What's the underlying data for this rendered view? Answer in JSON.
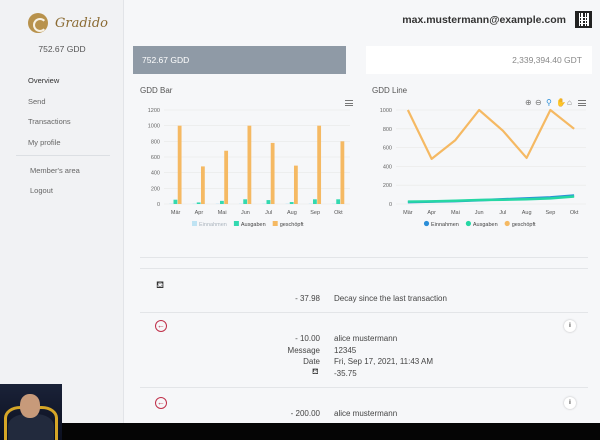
{
  "sidebar": {
    "brand": "Gradido",
    "balance": "752.67 GDD",
    "nav": [
      {
        "label": "Overview"
      },
      {
        "label": "Send"
      },
      {
        "label": "Transactions"
      },
      {
        "label": "My profile"
      }
    ],
    "nav2": [
      {
        "label": "Member's area"
      },
      {
        "label": "Logout"
      }
    ]
  },
  "header": {
    "email": "max.mustermann@example.com",
    "qr_icon": "qr-code-icon"
  },
  "balances": {
    "gdd": "752.67 GDD",
    "gdt": "2,339,394.40 GDT"
  },
  "chart_data": [
    {
      "type": "bar",
      "title": "GDD Bar",
      "categories": [
        "Mär",
        "Apr",
        "Mai",
        "Jun",
        "Jul",
        "Aug",
        "Sep",
        "Okt"
      ],
      "ylim": [
        0,
        1200
      ],
      "yticks": [
        "0",
        "200",
        "400",
        "600",
        "800",
        "1000",
        "1200"
      ],
      "series": [
        {
          "name": "Einnahmen",
          "color": "#bfe3f3",
          "values": [
            5,
            5,
            5,
            5,
            5,
            5,
            5,
            5
          ]
        },
        {
          "name": "Ausgaben",
          "color": "#33d9b0",
          "values": [
            55,
            20,
            40,
            60,
            50,
            25,
            60,
            60
          ]
        },
        {
          "name": "geschöpft",
          "color": "#f5b963",
          "values": [
            1000,
            480,
            680,
            1000,
            780,
            490,
            1000,
            800
          ]
        }
      ],
      "legend": "bottom",
      "grid": true
    },
    {
      "type": "line",
      "title": "GDD Line",
      "categories": [
        "Mär",
        "Apr",
        "Mai",
        "Jun",
        "Jul",
        "Aug",
        "Sep",
        "Okt"
      ],
      "ylim": [
        0,
        1000
      ],
      "yticks": [
        "0",
        "200",
        "400",
        "600",
        "800",
        "1000"
      ],
      "series": [
        {
          "name": "Einnahmen",
          "color": "#2b8ed8",
          "values": [
            20,
            25,
            30,
            40,
            50,
            60,
            70,
            90
          ]
        },
        {
          "name": "Ausgaben",
          "color": "#26d7a4",
          "values": [
            25,
            28,
            35,
            42,
            45,
            50,
            60,
            80
          ]
        },
        {
          "name": "geschöpft",
          "color": "#f5b963",
          "values": [
            1000,
            480,
            680,
            1000,
            780,
            490,
            1000,
            800
          ]
        }
      ],
      "legend": "bottom",
      "grid": true
    }
  ],
  "transactions": [
    {
      "icon": "gradido-drop-icon",
      "amount": "- 37.98",
      "text": "Decay since the last transaction"
    },
    {
      "icon": "arrow-left-circle-icon",
      "amount": "- 10.00",
      "name": "alice mustermann",
      "message_label": "Message",
      "message": "12345",
      "date_label": "Date",
      "date": "Fri, Sep 17, 2021, 11:43 AM",
      "decay": "-35.75",
      "info": "i"
    },
    {
      "icon": "arrow-left-circle-icon",
      "amount": "- 200.00",
      "name": "alice mustermann",
      "info": "i"
    }
  ]
}
